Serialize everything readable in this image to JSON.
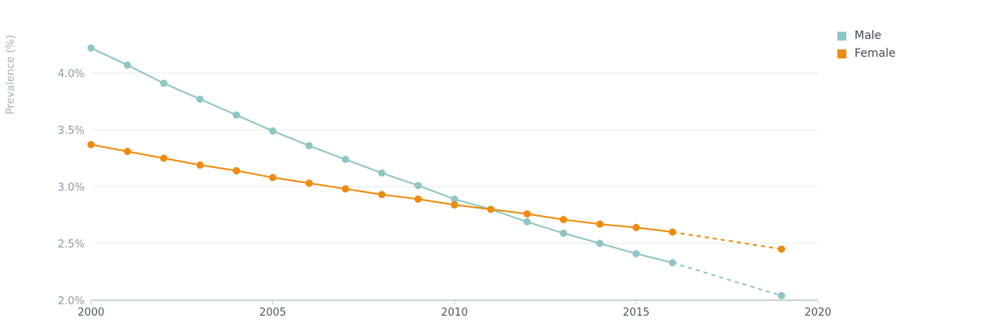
{
  "chart_data": {
    "type": "line",
    "ylabel": "Prevalence (%)",
    "xlabel": "",
    "xlim": [
      2000,
      2020
    ],
    "ylim": [
      2.0,
      4.5
    ],
    "x_ticks": [
      "2000",
      "2005",
      "2010",
      "2015",
      "2020"
    ],
    "y_ticks": [
      "2.0%",
      "2.5%",
      "3.0%",
      "3.5%",
      "4.0%"
    ],
    "grid": true,
    "legend_position": "top-right",
    "series": [
      {
        "name": "Male",
        "color": "#8ec6c5",
        "x": [
          2000,
          2001,
          2002,
          2003,
          2004,
          2005,
          2006,
          2007,
          2008,
          2009,
          2010,
          2011,
          2012,
          2013,
          2014,
          2015,
          2016,
          2019
        ],
        "values": [
          4.22,
          4.07,
          3.91,
          3.77,
          3.63,
          3.49,
          3.36,
          3.24,
          3.12,
          3.01,
          2.89,
          2.8,
          2.69,
          2.59,
          2.5,
          2.41,
          2.33,
          2.04
        ],
        "dashed_from_x": 2016
      },
      {
        "name": "Female",
        "color": "#ee8b0c",
        "x": [
          2000,
          2001,
          2002,
          2003,
          2004,
          2005,
          2006,
          2007,
          2008,
          2009,
          2010,
          2011,
          2012,
          2013,
          2014,
          2015,
          2016,
          2019
        ],
        "values": [
          3.37,
          3.31,
          3.25,
          3.19,
          3.14,
          3.08,
          3.03,
          2.98,
          2.93,
          2.89,
          2.84,
          2.8,
          2.76,
          2.71,
          2.67,
          2.64,
          2.6,
          2.45
        ],
        "dashed_from_x": 2016
      }
    ]
  }
}
